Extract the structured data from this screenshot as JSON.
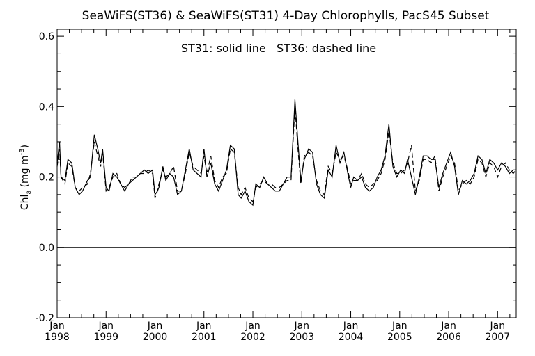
{
  "chart_data": {
    "type": "line",
    "title": "SeaWiFS(ST36) & SeaWiFS(ST31) 4-Day Chlorophylls, PacS45 Subset",
    "annotation": "ST31: solid line   ST36: dashed line",
    "ylabel": {
      "main": "Chl",
      "sub": "a",
      "unit_pre": "(mg m",
      "unit_sup": "-3",
      "unit_post": ")"
    },
    "ylim": [
      -0.2,
      0.62
    ],
    "yticks": [
      -0.2,
      0.0,
      0.2,
      0.4,
      0.6
    ],
    "ytick_labels": [
      "-0.2",
      "0.0",
      "0.2",
      "0.4",
      "0.6"
    ],
    "xlim": [
      1998.0,
      2007.38
    ],
    "xticks": [
      {
        "x": 1998,
        "month": "Jan",
        "year": "1998"
      },
      {
        "x": 1999,
        "month": "Jan",
        "year": "1999"
      },
      {
        "x": 2000,
        "month": "Jan",
        "year": "2000"
      },
      {
        "x": 2001,
        "month": "Jan",
        "year": "2001"
      },
      {
        "x": 2002,
        "month": "Jan",
        "year": "2002"
      },
      {
        "x": 2003,
        "month": "Jan",
        "year": "2003"
      },
      {
        "x": 2004,
        "month": "Jan",
        "year": "2004"
      },
      {
        "x": 2005,
        "month": "Jan",
        "year": "2005"
      },
      {
        "x": 2006,
        "month": "Jan",
        "year": "2006"
      },
      {
        "x": 2007,
        "month": "Jan",
        "year": "2007"
      }
    ],
    "reference_line_y": 0.0,
    "grid": false,
    "series": [
      {
        "name": "ST31",
        "style": "solid",
        "points": [
          [
            1998.0,
            0.24
          ],
          [
            1998.05,
            0.3
          ],
          [
            1998.08,
            0.2
          ],
          [
            1998.16,
            0.19
          ],
          [
            1998.22,
            0.25
          ],
          [
            1998.3,
            0.24
          ],
          [
            1998.37,
            0.17
          ],
          [
            1998.45,
            0.15
          ],
          [
            1998.52,
            0.16
          ],
          [
            1998.62,
            0.19
          ],
          [
            1998.68,
            0.2
          ],
          [
            1998.76,
            0.32
          ],
          [
            1998.83,
            0.28
          ],
          [
            1998.89,
            0.24
          ],
          [
            1998.93,
            0.28
          ],
          [
            1999.0,
            0.17
          ],
          [
            1999.06,
            0.16
          ],
          [
            1999.14,
            0.21
          ],
          [
            1999.22,
            0.2
          ],
          [
            1999.3,
            0.18
          ],
          [
            1999.38,
            0.16
          ],
          [
            1999.46,
            0.18
          ],
          [
            1999.54,
            0.19
          ],
          [
            1999.62,
            0.2
          ],
          [
            1999.7,
            0.21
          ],
          [
            1999.78,
            0.22
          ],
          [
            1999.86,
            0.21
          ],
          [
            1999.95,
            0.22
          ],
          [
            2000.0,
            0.15
          ],
          [
            2000.05,
            0.16
          ],
          [
            2000.08,
            0.17
          ],
          [
            2000.16,
            0.23
          ],
          [
            2000.22,
            0.19
          ],
          [
            2000.3,
            0.21
          ],
          [
            2000.38,
            0.2
          ],
          [
            2000.46,
            0.15
          ],
          [
            2000.54,
            0.16
          ],
          [
            2000.62,
            0.22
          ],
          [
            2000.7,
            0.28
          ],
          [
            2000.78,
            0.22
          ],
          [
            2000.86,
            0.21
          ],
          [
            2000.94,
            0.2
          ],
          [
            2001.0,
            0.28
          ],
          [
            2001.06,
            0.2
          ],
          [
            2001.14,
            0.24
          ],
          [
            2001.22,
            0.18
          ],
          [
            2001.3,
            0.16
          ],
          [
            2001.38,
            0.19
          ],
          [
            2001.46,
            0.22
          ],
          [
            2001.54,
            0.29
          ],
          [
            2001.62,
            0.28
          ],
          [
            2001.7,
            0.15
          ],
          [
            2001.76,
            0.14
          ],
          [
            2001.84,
            0.16
          ],
          [
            2001.92,
            0.13
          ],
          [
            2002.0,
            0.12
          ],
          [
            2002.06,
            0.18
          ],
          [
            2002.14,
            0.17
          ],
          [
            2002.22,
            0.2
          ],
          [
            2002.3,
            0.18
          ],
          [
            2002.38,
            0.17
          ],
          [
            2002.46,
            0.16
          ],
          [
            2002.54,
            0.16
          ],
          [
            2002.62,
            0.18
          ],
          [
            2002.7,
            0.2
          ],
          [
            2002.78,
            0.2
          ],
          [
            2002.86,
            0.42
          ],
          [
            2002.92,
            0.3
          ],
          [
            2002.98,
            0.19
          ],
          [
            2003.05,
            0.25
          ],
          [
            2003.14,
            0.28
          ],
          [
            2003.22,
            0.27
          ],
          [
            2003.3,
            0.18
          ],
          [
            2003.38,
            0.15
          ],
          [
            2003.46,
            0.14
          ],
          [
            2003.54,
            0.22
          ],
          [
            2003.62,
            0.2
          ],
          [
            2003.7,
            0.29
          ],
          [
            2003.78,
            0.24
          ],
          [
            2003.86,
            0.27
          ],
          [
            2003.94,
            0.21
          ],
          [
            2004.0,
            0.17
          ],
          [
            2004.06,
            0.2
          ],
          [
            2004.14,
            0.19
          ],
          [
            2004.22,
            0.2
          ],
          [
            2004.3,
            0.17
          ],
          [
            2004.38,
            0.16
          ],
          [
            2004.46,
            0.17
          ],
          [
            2004.54,
            0.2
          ],
          [
            2004.62,
            0.22
          ],
          [
            2004.7,
            0.26
          ],
          [
            2004.78,
            0.35
          ],
          [
            2004.86,
            0.23
          ],
          [
            2004.94,
            0.2
          ],
          [
            2005.02,
            0.22
          ],
          [
            2005.1,
            0.21
          ],
          [
            2005.16,
            0.25
          ],
          [
            2005.24,
            0.2
          ],
          [
            2005.32,
            0.15
          ],
          [
            2005.4,
            0.2
          ],
          [
            2005.48,
            0.26
          ],
          [
            2005.56,
            0.26
          ],
          [
            2005.64,
            0.25
          ],
          [
            2005.72,
            0.25
          ],
          [
            2005.8,
            0.17
          ],
          [
            2005.88,
            0.21
          ],
          [
            2005.96,
            0.24
          ],
          [
            2006.04,
            0.27
          ],
          [
            2006.12,
            0.23
          ],
          [
            2006.2,
            0.15
          ],
          [
            2006.28,
            0.19
          ],
          [
            2006.36,
            0.18
          ],
          [
            2006.44,
            0.19
          ],
          [
            2006.52,
            0.21
          ],
          [
            2006.6,
            0.26
          ],
          [
            2006.68,
            0.25
          ],
          [
            2006.76,
            0.21
          ],
          [
            2006.84,
            0.25
          ],
          [
            2006.92,
            0.24
          ],
          [
            2007.0,
            0.22
          ],
          [
            2007.08,
            0.24
          ],
          [
            2007.16,
            0.23
          ],
          [
            2007.24,
            0.21
          ],
          [
            2007.32,
            0.22
          ],
          [
            2007.38,
            0.22
          ]
        ]
      },
      {
        "name": "ST36",
        "style": "dashed",
        "points": [
          [
            1998.0,
            0.23
          ],
          [
            1998.05,
            0.28
          ],
          [
            1998.08,
            0.2
          ],
          [
            1998.16,
            0.18
          ],
          [
            1998.22,
            0.24
          ],
          [
            1998.3,
            0.23
          ],
          [
            1998.37,
            0.17
          ],
          [
            1998.45,
            0.16
          ],
          [
            1998.52,
            0.17
          ],
          [
            1998.62,
            0.18
          ],
          [
            1998.68,
            0.21
          ],
          [
            1998.76,
            0.3
          ],
          [
            1998.83,
            0.26
          ],
          [
            1998.89,
            0.23
          ],
          [
            1998.93,
            0.27
          ],
          [
            1999.0,
            0.16
          ],
          [
            1999.06,
            0.17
          ],
          [
            1999.14,
            0.2
          ],
          [
            1999.22,
            0.21
          ],
          [
            1999.3,
            0.18
          ],
          [
            1999.38,
            0.17
          ],
          [
            1999.46,
            0.18
          ],
          [
            1999.54,
            0.2
          ],
          [
            1999.62,
            0.2
          ],
          [
            1999.7,
            0.21
          ],
          [
            1999.78,
            0.21
          ],
          [
            1999.86,
            0.22
          ],
          [
            1999.95,
            0.21
          ],
          [
            2000.0,
            0.14
          ],
          [
            2000.05,
            0.16
          ],
          [
            2000.08,
            0.18
          ],
          [
            2000.16,
            0.22
          ],
          [
            2000.22,
            0.2
          ],
          [
            2000.3,
            0.21
          ],
          [
            2000.38,
            0.23
          ],
          [
            2000.46,
            0.16
          ],
          [
            2000.54,
            0.16
          ],
          [
            2000.62,
            0.21
          ],
          [
            2000.7,
            0.27
          ],
          [
            2000.78,
            0.23
          ],
          [
            2000.86,
            0.22
          ],
          [
            2000.94,
            0.21
          ],
          [
            2001.0,
            0.26
          ],
          [
            2001.06,
            0.21
          ],
          [
            2001.14,
            0.26
          ],
          [
            2001.22,
            0.19
          ],
          [
            2001.3,
            0.17
          ],
          [
            2001.38,
            0.2
          ],
          [
            2001.46,
            0.21
          ],
          [
            2001.54,
            0.28
          ],
          [
            2001.62,
            0.27
          ],
          [
            2001.7,
            0.17
          ],
          [
            2001.76,
            0.15
          ],
          [
            2001.84,
            0.17
          ],
          [
            2001.92,
            0.14
          ],
          [
            2002.0,
            0.13
          ],
          [
            2002.06,
            0.17
          ],
          [
            2002.14,
            0.18
          ],
          [
            2002.22,
            0.19
          ],
          [
            2002.3,
            0.18
          ],
          [
            2002.38,
            0.18
          ],
          [
            2002.46,
            0.17
          ],
          [
            2002.54,
            0.17
          ],
          [
            2002.62,
            0.18
          ],
          [
            2002.7,
            0.19
          ],
          [
            2002.78,
            0.19
          ],
          [
            2002.86,
            0.4
          ],
          [
            2002.92,
            0.28
          ],
          [
            2002.98,
            0.18
          ],
          [
            2003.05,
            0.26
          ],
          [
            2003.14,
            0.27
          ],
          [
            2003.22,
            0.26
          ],
          [
            2003.3,
            0.19
          ],
          [
            2003.38,
            0.16
          ],
          [
            2003.46,
            0.15
          ],
          [
            2003.54,
            0.23
          ],
          [
            2003.62,
            0.21
          ],
          [
            2003.7,
            0.27
          ],
          [
            2003.78,
            0.25
          ],
          [
            2003.86,
            0.26
          ],
          [
            2003.94,
            0.22
          ],
          [
            2004.0,
            0.18
          ],
          [
            2004.06,
            0.19
          ],
          [
            2004.14,
            0.19
          ],
          [
            2004.22,
            0.21
          ],
          [
            2004.3,
            0.18
          ],
          [
            2004.38,
            0.17
          ],
          [
            2004.46,
            0.18
          ],
          [
            2004.54,
            0.19
          ],
          [
            2004.62,
            0.21
          ],
          [
            2004.7,
            0.25
          ],
          [
            2004.78,
            0.33
          ],
          [
            2004.86,
            0.24
          ],
          [
            2004.94,
            0.21
          ],
          [
            2005.02,
            0.21
          ],
          [
            2005.1,
            0.22
          ],
          [
            2005.16,
            0.24
          ],
          [
            2005.24,
            0.29
          ],
          [
            2005.32,
            0.16
          ],
          [
            2005.4,
            0.19
          ],
          [
            2005.48,
            0.25
          ],
          [
            2005.56,
            0.25
          ],
          [
            2005.64,
            0.24
          ],
          [
            2005.72,
            0.26
          ],
          [
            2005.8,
            0.16
          ],
          [
            2005.88,
            0.2
          ],
          [
            2005.96,
            0.23
          ],
          [
            2006.04,
            0.26
          ],
          [
            2006.12,
            0.24
          ],
          [
            2006.2,
            0.16
          ],
          [
            2006.28,
            0.18
          ],
          [
            2006.36,
            0.19
          ],
          [
            2006.44,
            0.18
          ],
          [
            2006.52,
            0.2
          ],
          [
            2006.6,
            0.25
          ],
          [
            2006.68,
            0.24
          ],
          [
            2006.76,
            0.2
          ],
          [
            2006.84,
            0.24
          ],
          [
            2006.92,
            0.23
          ],
          [
            2007.0,
            0.2
          ],
          [
            2007.08,
            0.23
          ],
          [
            2007.16,
            0.24
          ],
          [
            2007.24,
            0.22
          ],
          [
            2007.32,
            0.21
          ],
          [
            2007.38,
            0.22
          ]
        ]
      }
    ]
  }
}
